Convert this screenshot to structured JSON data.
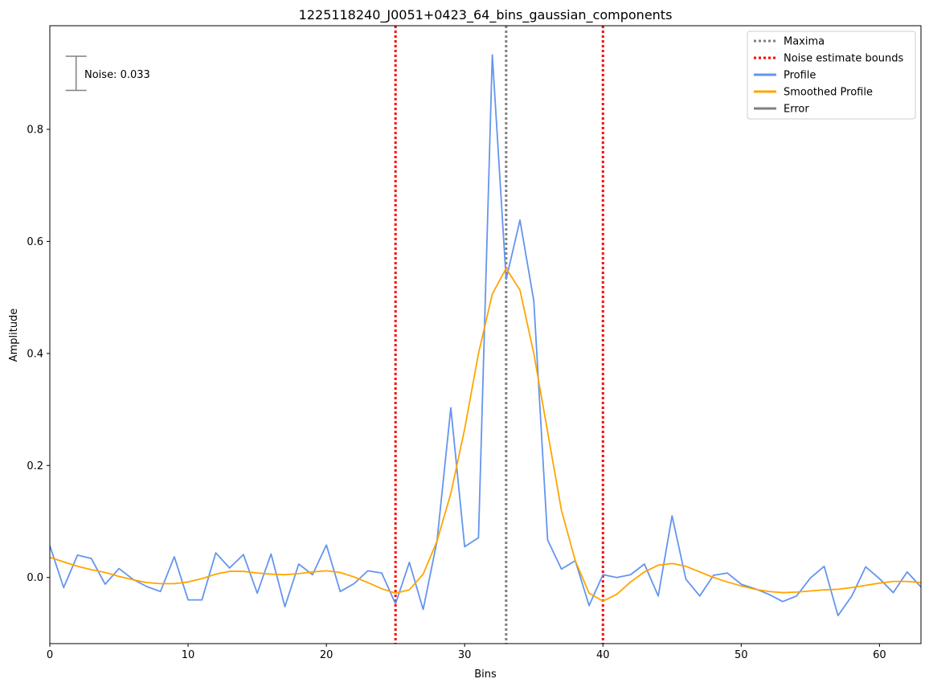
{
  "chart_data": {
    "type": "line",
    "title": "1225118240_J0051+0423_64_bins_gaussian_components",
    "xlabel": "Bins",
    "ylabel": "Amplitude",
    "xlim": [
      0,
      63
    ],
    "ylim": [
      -0.118,
      0.985
    ],
    "xticks": [
      0,
      10,
      20,
      30,
      40,
      50,
      60
    ],
    "yticks": [
      0.0,
      0.2,
      0.4,
      0.6,
      0.8
    ],
    "ytick_labels": [
      "0.0",
      "0.2",
      "0.4",
      "0.6",
      "0.8"
    ],
    "grid": false,
    "legend_position": "top-right",
    "x": [
      0,
      1,
      2,
      3,
      4,
      5,
      6,
      7,
      8,
      9,
      10,
      11,
      12,
      13,
      14,
      15,
      16,
      17,
      18,
      19,
      20,
      21,
      22,
      23,
      24,
      25,
      26,
      27,
      28,
      29,
      30,
      31,
      32,
      33,
      34,
      35,
      36,
      37,
      38,
      39,
      40,
      41,
      42,
      43,
      44,
      45,
      46,
      47,
      48,
      49,
      50,
      51,
      52,
      53,
      54,
      55,
      56,
      57,
      58,
      59,
      60,
      61,
      62,
      63
    ],
    "series": [
      {
        "name": "Profile",
        "color": "#6495ed",
        "values": [
          0.057,
          -0.018,
          0.04,
          0.034,
          -0.012,
          0.016,
          -0.003,
          -0.016,
          -0.025,
          0.037,
          -0.04,
          -0.04,
          0.044,
          0.017,
          0.041,
          -0.028,
          0.042,
          -0.052,
          0.024,
          0.005,
          0.058,
          -0.025,
          -0.011,
          0.012,
          0.008,
          -0.047,
          0.027,
          -0.057,
          0.065,
          0.303,
          0.055,
          0.071,
          0.933,
          0.532,
          0.638,
          0.494,
          0.067,
          0.015,
          0.03,
          -0.05,
          0.005,
          0.0,
          0.005,
          0.024,
          -0.033,
          0.11,
          -0.003,
          -0.033,
          0.004,
          0.008,
          -0.012,
          -0.02,
          -0.03,
          -0.043,
          -0.033,
          -0.001,
          0.02,
          -0.068,
          -0.033,
          0.019,
          -0.002,
          -0.027,
          0.01,
          -0.017
        ]
      },
      {
        "name": "Smoothed Profile",
        "color": "#ffa500",
        "values": [
          0.036,
          0.028,
          0.02,
          0.014,
          0.009,
          0.002,
          -0.004,
          -0.009,
          -0.011,
          -0.011,
          -0.008,
          -0.002,
          0.006,
          0.011,
          0.011,
          0.008,
          0.006,
          0.005,
          0.007,
          0.01,
          0.012,
          0.009,
          0.001,
          -0.009,
          -0.02,
          -0.028,
          -0.022,
          0.006,
          0.065,
          0.15,
          0.265,
          0.4,
          0.506,
          0.552,
          0.513,
          0.4,
          0.26,
          0.12,
          0.03,
          -0.028,
          -0.042,
          -0.03,
          -0.008,
          0.01,
          0.022,
          0.025,
          0.02,
          0.01,
          0.0,
          -0.008,
          -0.015,
          -0.021,
          -0.025,
          -0.027,
          -0.026,
          -0.024,
          -0.022,
          -0.021,
          -0.018,
          -0.014,
          -0.01,
          -0.007,
          -0.007,
          -0.009
        ]
      }
    ],
    "vlines": [
      {
        "name": "Maxima",
        "x": 33,
        "color": "#808080",
        "style": "dotted"
      },
      {
        "name": "Noise estimate bounds",
        "x": 25,
        "color": "#ff0000",
        "style": "dotted"
      },
      {
        "name": "Noise estimate bounds",
        "x": 40,
        "color": "#ff0000",
        "style": "dotted"
      }
    ],
    "error_bar": {
      "name": "Error",
      "x": 1.9,
      "center": 0.9,
      "half_height": 0.0305,
      "color": "#808080"
    },
    "annotation": "Noise: 0.033",
    "legend": [
      {
        "label": "Maxima",
        "color": "#808080",
        "style": "dotted"
      },
      {
        "label": "Noise estimate bounds",
        "color": "#ff0000",
        "style": "dotted"
      },
      {
        "label": "Profile",
        "color": "#6495ed",
        "style": "solid"
      },
      {
        "label": "Smoothed Profile",
        "color": "#ffa500",
        "style": "solid"
      },
      {
        "label": "Error",
        "color": "#808080",
        "style": "solid"
      }
    ]
  }
}
